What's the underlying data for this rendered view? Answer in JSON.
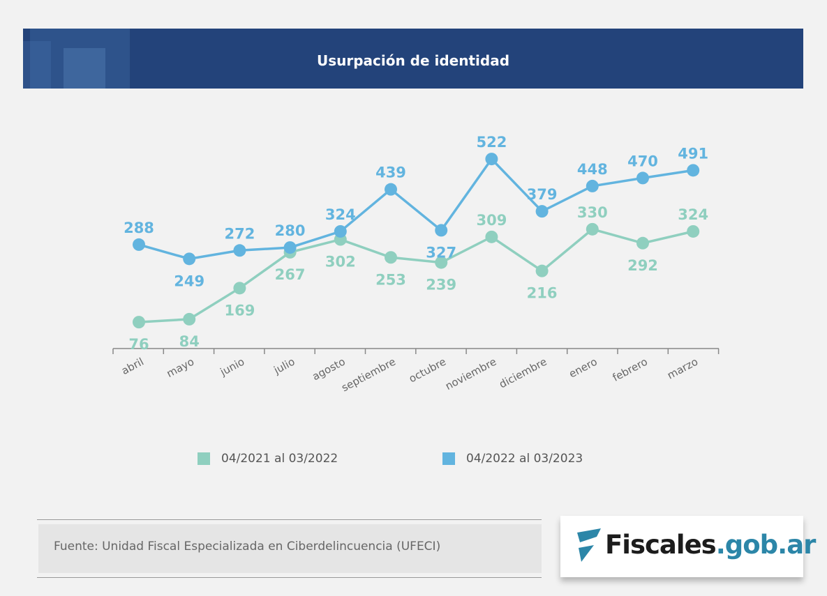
{
  "header": {
    "title": "Usurpación de identidad"
  },
  "chart_data": {
    "type": "line",
    "title": "Usurpación de identidad",
    "categories": [
      "abril",
      "mayo",
      "junio",
      "julio",
      "agosto",
      "septiembre",
      "octubre",
      "noviembre",
      "diciembre",
      "enero",
      "febrero",
      "marzo"
    ],
    "series": [
      {
        "name": "04/2021 al 03/2022",
        "color": "#8fcfbf",
        "values": [
          76,
          84,
          169,
          267,
          302,
          253,
          239,
          309,
          216,
          330,
          292,
          324
        ]
      },
      {
        "name": "04/2022 al 03/2023",
        "color": "#62b4df",
        "values": [
          288,
          249,
          272,
          280,
          324,
          439,
          327,
          522,
          379,
          448,
          470,
          491
        ]
      }
    ],
    "ylim": [
      0,
      550
    ],
    "grid": false,
    "legend": "bottom"
  },
  "source": "Fuente: Unidad Fiscal Especializada en Ciberdelincuencia (UFECI)",
  "logo": {
    "name": "Fiscales",
    "domain": ".gob.ar",
    "icon": "fiscales-f-logo",
    "color": "#2c86a8"
  }
}
